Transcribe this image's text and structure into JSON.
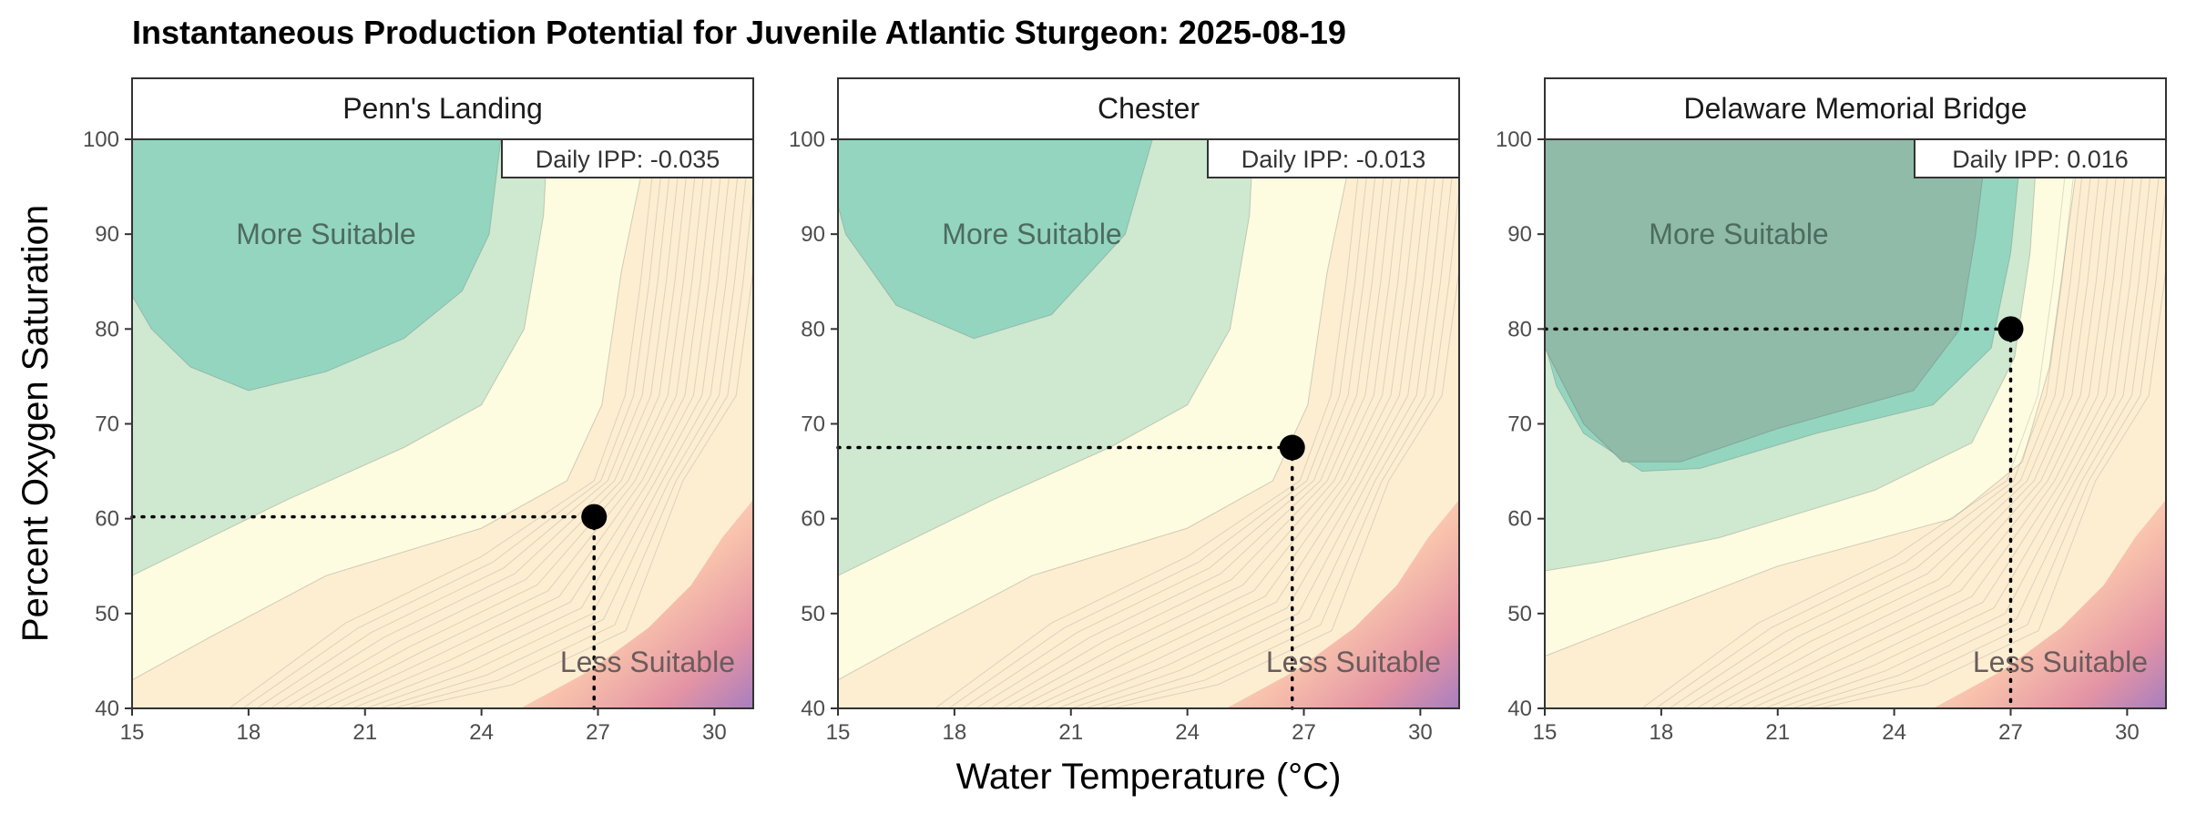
{
  "chart_data": {
    "type": "contour",
    "title": "Instantaneous Production Potential for Juvenile Atlantic Sturgeon: 2025-08-19",
    "xlabel": "Water Temperature (°C)",
    "ylabel": "Percent Oxygen Saturation",
    "xlim": [
      15,
      31
    ],
    "ylim": [
      40,
      100
    ],
    "x_ticks": [
      "15",
      "18",
      "21",
      "24",
      "27",
      "30"
    ],
    "y_ticks": [
      "40",
      "50",
      "60",
      "70",
      "80",
      "90",
      "100"
    ],
    "region_labels": {
      "high": "More Suitable",
      "low": "Less Suitable"
    },
    "ipp_label_prefix": "Daily IPP: ",
    "colors": {
      "most_suitable": "#8fbba8",
      "high": "#94d5c0",
      "mid": "#cfe9d0",
      "neutral": "#fdfbe0",
      "low": "#fdeed2",
      "lowest": "#a77ec0",
      "point": "#000000"
    },
    "panels": [
      {
        "site": "Penn's Landing",
        "temperature": 26.9,
        "oxygen": 60.2,
        "daily_ipp": "-0.035"
      },
      {
        "site": "Chester",
        "temperature": 26.7,
        "oxygen": 67.5,
        "daily_ipp": "-0.013"
      },
      {
        "site": "Delaware Memorial Bridge",
        "temperature": 27.0,
        "oxygen": 80.0,
        "daily_ipp": "0.016"
      }
    ]
  }
}
